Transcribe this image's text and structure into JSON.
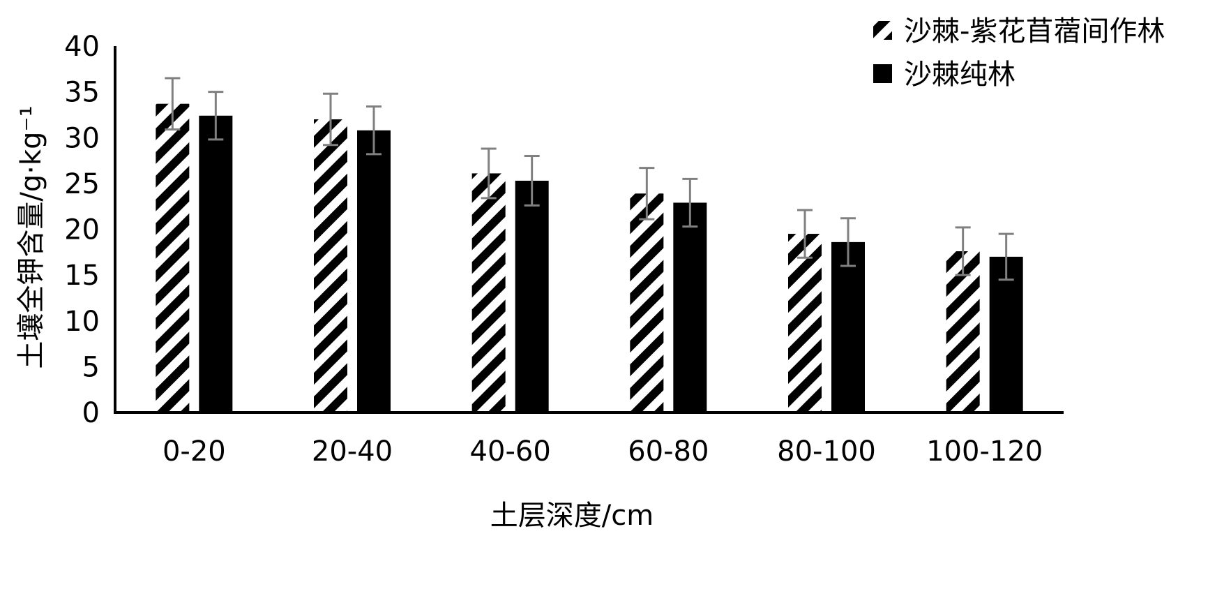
{
  "chart_data": {
    "type": "bar",
    "xlabel": "土层深度/cm",
    "ylabel": "土壤全钾含量/g·kg⁻¹",
    "categories": [
      "0-20",
      "20-40",
      "40-60",
      "60-80",
      "80-100",
      "100-120"
    ],
    "ylim": [
      0,
      40
    ],
    "yticks": [
      0,
      5,
      10,
      15,
      20,
      25,
      30,
      35,
      40
    ],
    "series": [
      {
        "name": "沙棘-紫花苜蓿间作林",
        "pattern": "hatched",
        "values": [
          33.7,
          32.0,
          26.1,
          23.9,
          19.5,
          17.6
        ],
        "errors": [
          2.8,
          2.8,
          2.7,
          2.8,
          2.6,
          2.6
        ]
      },
      {
        "name": "沙棘纯林",
        "pattern": "solid",
        "values": [
          32.4,
          30.8,
          25.3,
          22.9,
          18.6,
          17.0
        ],
        "errors": [
          2.6,
          2.6,
          2.7,
          2.6,
          2.6,
          2.5
        ]
      }
    ],
    "grid": false,
    "legend_position": "top-right",
    "colors": {
      "bar": "#000000",
      "error_bar": "#808080",
      "axis": "#000000"
    }
  }
}
